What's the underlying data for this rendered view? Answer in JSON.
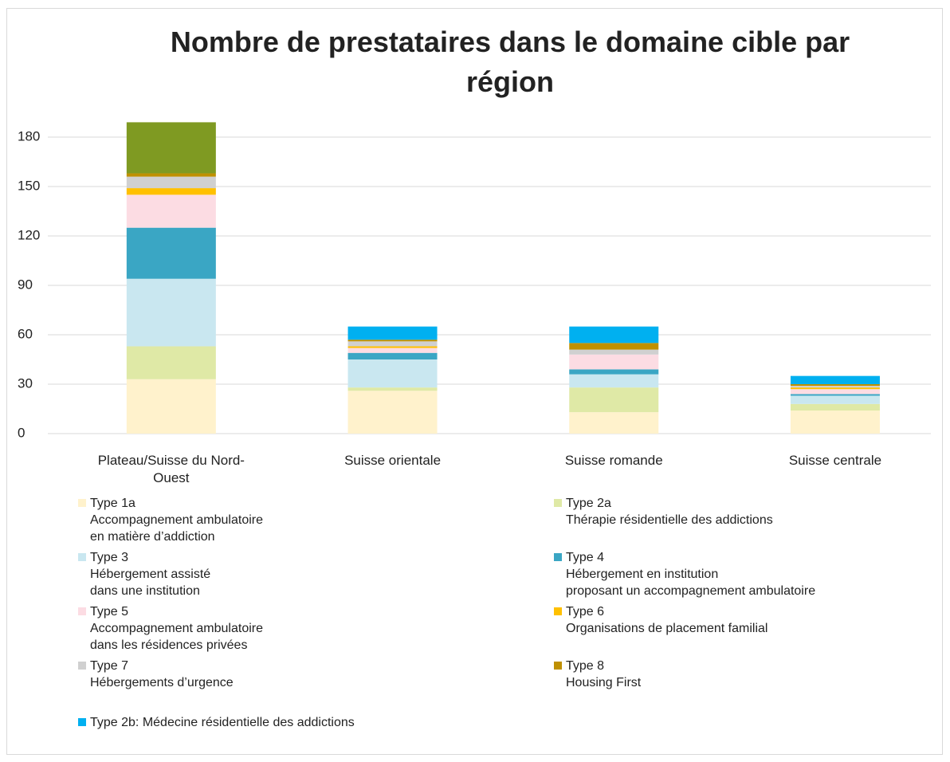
{
  "chart_data": {
    "type": "stacked_bar",
    "title": "Nombre de prestataires dans le domaine cible par région",
    "categories": [
      "Plateau/Suisse du Nord-Ouest",
      "Suisse orientale",
      "Suisse romande",
      "Suisse centrale"
    ],
    "series": [
      {
        "name": "Type 1a\nAccompagnement ambulatoire\nen matière d’addiction",
        "color": "#fff2cc",
        "values": [
          33,
          26,
          13,
          14
        ]
      },
      {
        "name": "Type 2a\nThérapie résidentielle des addictions",
        "color": "#dfe9a6",
        "values": [
          20,
          2,
          15,
          4
        ]
      },
      {
        "name": "Type 3\nHébergement assisté\ndans une institution",
        "color": "#c9e7f0",
        "values": [
          41,
          17,
          8,
          5
        ]
      },
      {
        "name": "Type 4\nHébergement en institution\nproposant un accompagnement ambulatoire",
        "color": "#3aa6c4",
        "values": [
          31,
          4,
          3,
          1
        ]
      },
      {
        "name": "Type 5\nAccompagnement ambulatoire\ndans les résidences privées",
        "color": "#fcdce3",
        "values": [
          20,
          3,
          9,
          3
        ]
      },
      {
        "name": "Type 6\nOrganisations de placement familial",
        "color": "#ffc000",
        "values": [
          4,
          1,
          0,
          1
        ]
      },
      {
        "name": "Type 7\nHébergements d’urgence",
        "color": "#d0d0d0",
        "values": [
          7,
          3,
          3,
          1
        ]
      },
      {
        "name": "Type 8\nHousing First",
        "color": "#bf9000",
        "values": [
          2,
          1,
          4,
          1
        ]
      },
      {
        "name": "Type 2b: Médecine résidentielle  des addictions",
        "color": "#00b0f0",
        "values": [
          0,
          8,
          10,
          5
        ]
      },
      {
        "color": "#7f9a22",
        "values": [
          31,
          0,
          0,
          0
        ]
      }
    ],
    "ylim": [
      0,
      190
    ],
    "yticks": [
      0,
      30,
      60,
      90,
      120,
      150,
      180
    ],
    "grid": true
  }
}
